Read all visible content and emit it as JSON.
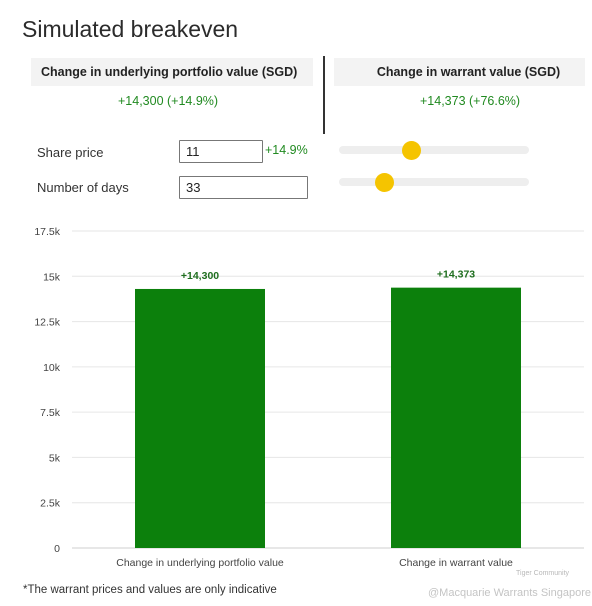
{
  "title": "Simulated breakeven",
  "summary": {
    "underlying_header": "Change in underlying portfolio value (SGD)",
    "underlying_value": "+14,300 (+14.9%)",
    "warrant_header": "Change in warrant value (SGD)",
    "warrant_value": "+14,373 (+76.6%)"
  },
  "inputs": {
    "share_price_label": "Share price",
    "share_price_value": "11",
    "share_price_change": "+14.9%",
    "days_label": "Number of days",
    "days_value": "33"
  },
  "sliders": {
    "share_price_level": 0.37,
    "days_level": 0.21,
    "thumb_color": "#f5c400"
  },
  "colors": {
    "bar": "#0c800c",
    "positive_text": "#218a21"
  },
  "chart_data": {
    "type": "bar",
    "categories": [
      "Change in underlying portfolio value",
      "Change in warrant value"
    ],
    "values": [
      14300,
      14373
    ],
    "data_labels": [
      "+14,300",
      "+14,373"
    ],
    "yticks": [
      "0",
      "2.5k",
      "5k",
      "7.5k",
      "10k",
      "12.5k",
      "15k",
      "17.5k"
    ],
    "ylim": [
      0,
      17500
    ],
    "grid": true
  },
  "footnote": "*The warrant prices and values are only indicative",
  "watermark": {
    "community": "Tiger Community",
    "handle": "@Macquarie Warrants Singapore"
  }
}
